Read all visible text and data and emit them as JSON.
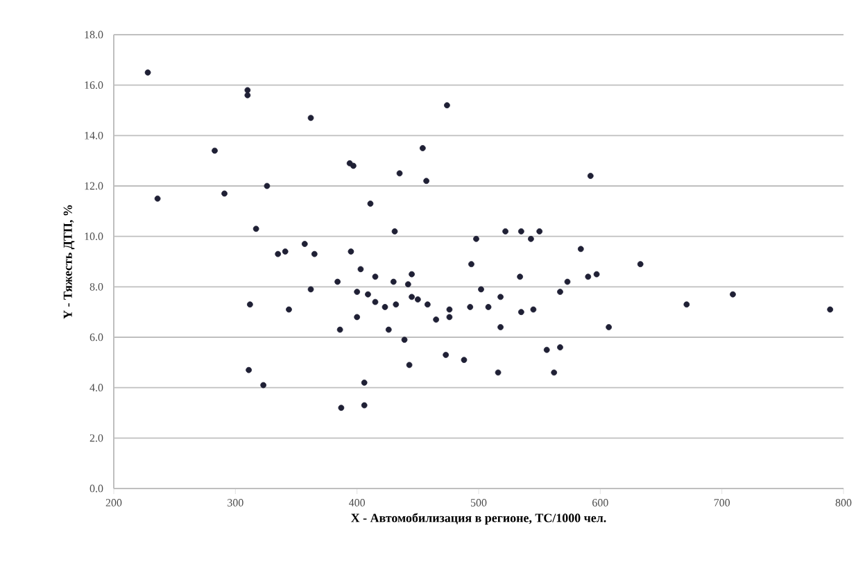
{
  "chart_data": {
    "type": "scatter",
    "xlabel": "X - Автомобилизация в регионе, ТС/1000 чел.",
    "ylabel": "Y - Тяжесть ДТП, %",
    "x": [
      228,
      236,
      283,
      291,
      310,
      310,
      362,
      326,
      394,
      317,
      335,
      341,
      357,
      365,
      395,
      362,
      384,
      312,
      344,
      386,
      311,
      323,
      387,
      397,
      474,
      454,
      435,
      457,
      592,
      411,
      431,
      403,
      415,
      430,
      445,
      442,
      400,
      409,
      415,
      423,
      432,
      445,
      450,
      458,
      465,
      476,
      476,
      400,
      426,
      439,
      443,
      473,
      488,
      406,
      406,
      498,
      494,
      502,
      493,
      508,
      518,
      518,
      516,
      522,
      535,
      543,
      550,
      534,
      535,
      545,
      556,
      567,
      562,
      567,
      573,
      584,
      590,
      597,
      607,
      633,
      671,
      709,
      789
    ],
    "values": [
      16.5,
      11.5,
      13.4,
      11.7,
      15.8,
      15.6,
      14.7,
      12.0,
      12.9,
      10.3,
      9.3,
      9.4,
      9.7,
      9.3,
      9.4,
      7.9,
      8.2,
      7.3,
      7.1,
      6.3,
      4.7,
      4.1,
      3.2,
      12.8,
      15.2,
      13.5,
      12.5,
      12.2,
      12.4,
      11.3,
      10.2,
      8.7,
      8.4,
      8.2,
      8.5,
      8.1,
      7.8,
      7.7,
      7.4,
      7.2,
      7.3,
      7.6,
      7.5,
      7.3,
      6.7,
      7.1,
      6.8,
      6.8,
      6.3,
      5.9,
      4.9,
      5.3,
      5.1,
      4.2,
      3.3,
      9.9,
      8.9,
      7.9,
      7.2,
      7.2,
      7.6,
      6.4,
      4.6,
      10.2,
      10.2,
      9.9,
      10.2,
      8.4,
      7.0,
      7.1,
      5.5,
      5.6,
      4.6,
      7.8,
      8.2,
      9.5,
      8.4,
      8.5,
      6.4,
      8.9,
      7.3,
      7.7,
      7.1
    ],
    "color": "#1f2035",
    "marker": "circle",
    "grid": "y",
    "xlim": [
      200,
      800
    ],
    "xticks": [
      200,
      300,
      400,
      500,
      600,
      700,
      800
    ],
    "ylim": [
      0,
      18
    ],
    "yticks": [
      {
        "value": 0,
        "label": "0.0"
      },
      {
        "value": 2,
        "label": "2.0"
      },
      {
        "value": 4,
        "label": "4.0"
      },
      {
        "value": 6,
        "label": "6.0"
      },
      {
        "value": 8,
        "label": "8.0"
      },
      {
        "value": 10,
        "label": "10.0"
      },
      {
        "value": 12,
        "label": "12.0"
      },
      {
        "value": 14,
        "label": "14.0"
      },
      {
        "value": 16,
        "label": "16.0"
      },
      {
        "value": 18,
        "label": "18.0"
      }
    ]
  }
}
